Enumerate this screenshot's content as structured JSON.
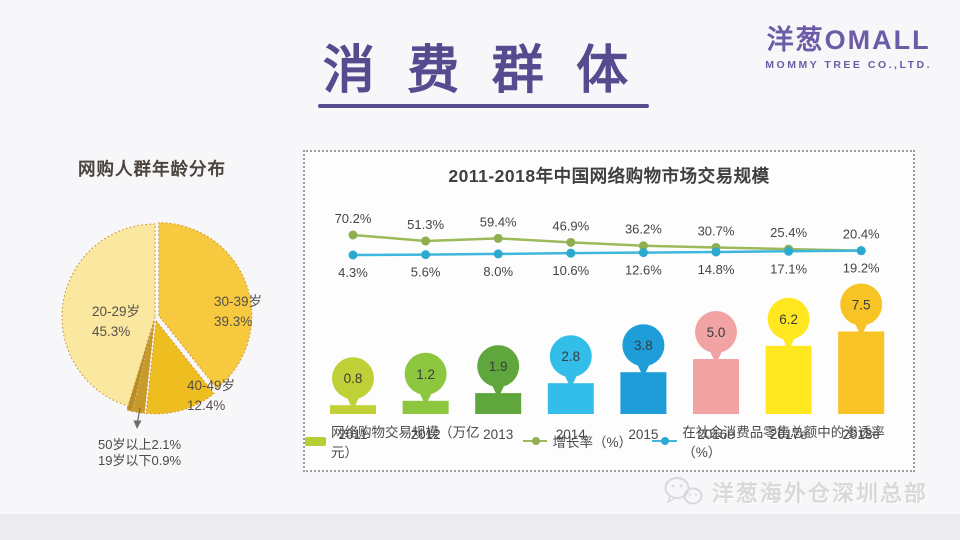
{
  "slide": {
    "title": "消 费 群 体"
  },
  "logo": {
    "name": "洋葱OMALL",
    "subtitle": "MOMMY TREE CO.,LTD."
  },
  "watermark": {
    "label": "洋葱海外仓深圳总部"
  },
  "chart_data": [
    {
      "type": "pie",
      "title": "网购人群年龄分布",
      "slices": [
        {
          "label": "30-39岁",
          "value": 39.3,
          "display": "39.3%",
          "color": "#F6C93F"
        },
        {
          "label": "40-49岁",
          "value": 12.4,
          "display": "12.4%",
          "color": "#EEBD1F"
        },
        {
          "label": "50岁以上",
          "value": 2.1,
          "display": "2.1%",
          "color": "#C79A2A"
        },
        {
          "label": "19岁以下",
          "value": 0.9,
          "display": "0.9%",
          "color": "#B68D22"
        },
        {
          "label": "20-29岁",
          "value": 45.3,
          "display": "45.3%",
          "color": "#FAE7A0"
        }
      ],
      "border_color": "#C9912F",
      "callout": [
        "50岁以上2.1%",
        "19岁以下0.9%"
      ]
    },
    {
      "type": "bar+line",
      "title": "2011-2018年中国网络购物市场交易规模",
      "categories": [
        "2011",
        "2012",
        "2013",
        "2014",
        "2015",
        "2016e",
        "2017e",
        "2018e"
      ],
      "series": [
        {
          "name": "网络购物交易规模（万亿元）",
          "chart": "bar",
          "values": [
            0.8,
            1.2,
            1.9,
            2.8,
            3.8,
            5.0,
            6.2,
            7.5
          ],
          "labels": [
            "0.8",
            "1.2",
            "1.9",
            "2.8",
            "3.8",
            "5.0",
            "6.2",
            "7.5"
          ],
          "colors": [
            "#C0D138",
            "#8DC63F",
            "#5FA63C",
            "#32BEE8",
            "#1E9DD8",
            "#F2A3A4",
            "#FFE81F",
            "#F7C325"
          ],
          "legend_color": "#B5CE35"
        },
        {
          "name": "增长率（%）",
          "chart": "line",
          "values": [
            70.2,
            51.3,
            59.4,
            46.9,
            36.2,
            30.7,
            25.4,
            20.4
          ],
          "labels": [
            "70.2%",
            "51.3%",
            "59.4%",
            "46.9%",
            "36.2%",
            "30.7%",
            "25.4%",
            "20.4%"
          ],
          "color": "#9CBA5B",
          "dot_color": "#8FAE4F"
        },
        {
          "name": "在社会消费品零售总额中的渗透率（%）",
          "chart": "line",
          "values": [
            4.3,
            5.6,
            8.0,
            10.6,
            12.6,
            14.8,
            17.1,
            19.2
          ],
          "labels": [
            "4.3%",
            "5.6%",
            "8.0%",
            "10.6%",
            "12.6%",
            "14.8%",
            "17.1%",
            "19.2%"
          ],
          "color": "#3FB7DC",
          "dot_color": "#2BA9CF"
        }
      ]
    }
  ]
}
